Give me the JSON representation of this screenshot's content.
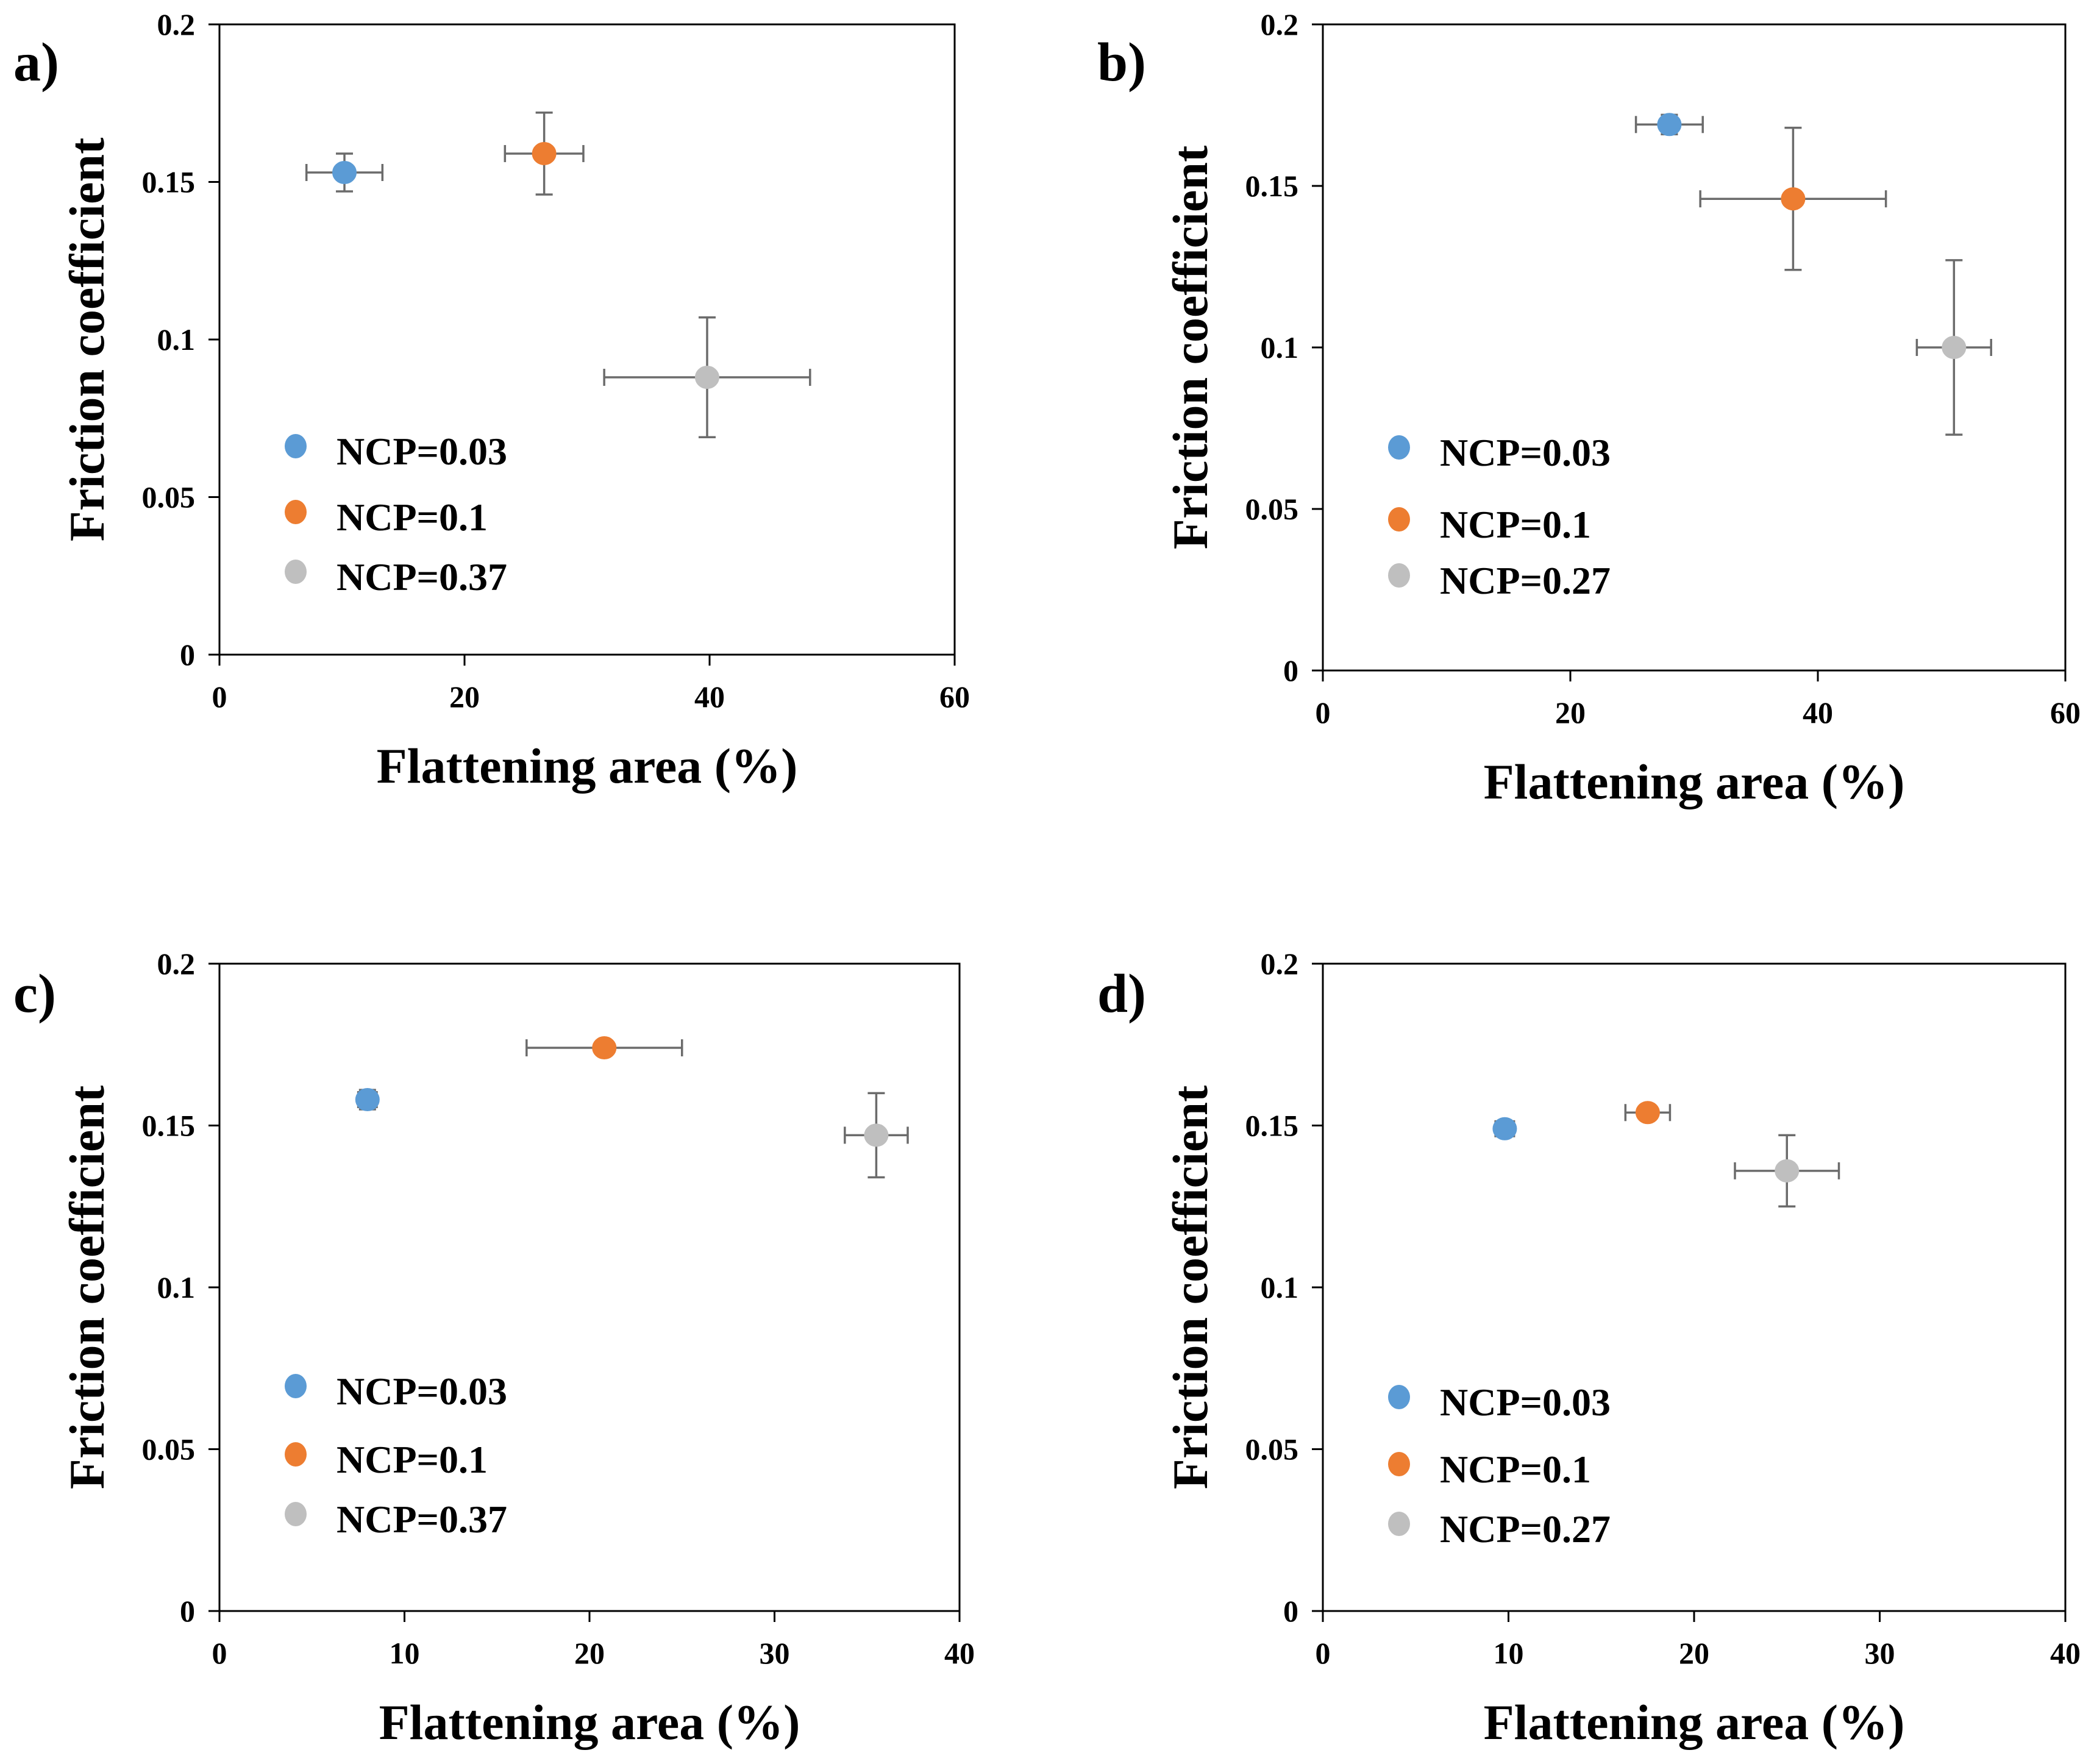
{
  "colors": {
    "NCP=0.03": "#5B9BD5",
    "NCP=0.1": "#ED7D31",
    "NCP=0.37": "#BFBFBF",
    "NCP=0.27": "#BFBFBF",
    "errorbar": "#6b6b6b"
  },
  "chart_data": [
    {
      "panel": "a)",
      "type": "scatter",
      "xlabel": "Flattening area (%)",
      "ylabel": "Friction coefficient",
      "xlim": [
        0,
        60
      ],
      "ylim": [
        0,
        0.2
      ],
      "xticks": [
        0,
        20,
        40,
        60
      ],
      "yticks": [
        0,
        0.05,
        0.1,
        0.15,
        0.2
      ],
      "xtick_labels": [
        "0",
        "20",
        "40",
        "60"
      ],
      "ytick_labels": [
        "0",
        "0.05",
        "0.1",
        "0.15",
        "0.2"
      ],
      "legend": "center-left",
      "series": [
        {
          "name": "NCP=0.03",
          "x": 10.2,
          "y": 0.153,
          "xerr": 3.1,
          "yerr": 0.006
        },
        {
          "name": "NCP=0.1",
          "x": 26.5,
          "y": 0.159,
          "xerr": 3.2,
          "yerr": 0.013
        },
        {
          "name": "NCP=0.37",
          "x": 39.8,
          "y": 0.088,
          "xerr": 8.4,
          "yerr": 0.019
        }
      ]
    },
    {
      "panel": "b)",
      "type": "scatter",
      "xlabel": "Flattening area (%)",
      "ylabel": "Friction coefficient",
      "xlim": [
        0,
        60
      ],
      "ylim": [
        0,
        0.2
      ],
      "xticks": [
        0,
        20,
        40,
        60
      ],
      "yticks": [
        0,
        0.05,
        0.1,
        0.15,
        0.2
      ],
      "xtick_labels": [
        "0",
        "20",
        "40",
        "60"
      ],
      "ytick_labels": [
        "0",
        "0.05",
        "0.1",
        "0.15",
        "0.2"
      ],
      "legend": "center-left",
      "series": [
        {
          "name": "NCP=0.03",
          "x": 28.0,
          "y": 0.169,
          "xerr": 2.7,
          "yerr": 0.003
        },
        {
          "name": "NCP=0.1",
          "x": 38.0,
          "y": 0.146,
          "xerr": 7.5,
          "yerr": 0.022
        },
        {
          "name": "NCP=0.27",
          "x": 51.0,
          "y": 0.1,
          "xerr": 3.0,
          "yerr": 0.027
        }
      ]
    },
    {
      "panel": "c)",
      "type": "scatter",
      "xlabel": "Flattening area (%)",
      "ylabel": "Friction coefficient",
      "xlim": [
        0,
        40
      ],
      "ylim": [
        0,
        0.2
      ],
      "xticks": [
        0,
        10,
        20,
        30,
        40
      ],
      "yticks": [
        0,
        0.05,
        0.1,
        0.15,
        0.2
      ],
      "xtick_labels": [
        "0",
        "10",
        "20",
        "30",
        "40"
      ],
      "ytick_labels": [
        "0",
        "0.05",
        "0.1",
        "0.15",
        "0.2"
      ],
      "legend": "center-left",
      "series": [
        {
          "name": "NCP=0.03",
          "x": 8.0,
          "y": 0.158,
          "xerr": 0.5,
          "yerr": 0.003
        },
        {
          "name": "NCP=0.1",
          "x": 20.8,
          "y": 0.174,
          "xerr": 4.2,
          "yerr": 0.002
        },
        {
          "name": "NCP=0.37",
          "x": 35.5,
          "y": 0.147,
          "xerr": 1.7,
          "yerr": 0.013
        }
      ]
    },
    {
      "panel": "d)",
      "type": "scatter",
      "xlabel": "Flattening area (%)",
      "ylabel": "Friction coefficient",
      "xlim": [
        0,
        40
      ],
      "ylim": [
        0,
        0.2
      ],
      "xticks": [
        0,
        10,
        20,
        30,
        40
      ],
      "yticks": [
        0,
        0.05,
        0.1,
        0.15,
        0.2
      ],
      "xtick_labels": [
        "0",
        "10",
        "20",
        "30",
        "40"
      ],
      "ytick_labels": [
        "0",
        "0.05",
        "0.1",
        "0.15",
        "0.2"
      ],
      "legend": "center-left",
      "series": [
        {
          "name": "NCP=0.03",
          "x": 9.8,
          "y": 0.149,
          "xerr": 0.5,
          "yerr": 0.002
        },
        {
          "name": "NCP=0.1",
          "x": 17.5,
          "y": 0.154,
          "xerr": 1.2,
          "yerr": 0.002
        },
        {
          "name": "NCP=0.27",
          "x": 25.0,
          "y": 0.136,
          "xerr": 2.8,
          "yerr": 0.011
        }
      ]
    }
  ]
}
